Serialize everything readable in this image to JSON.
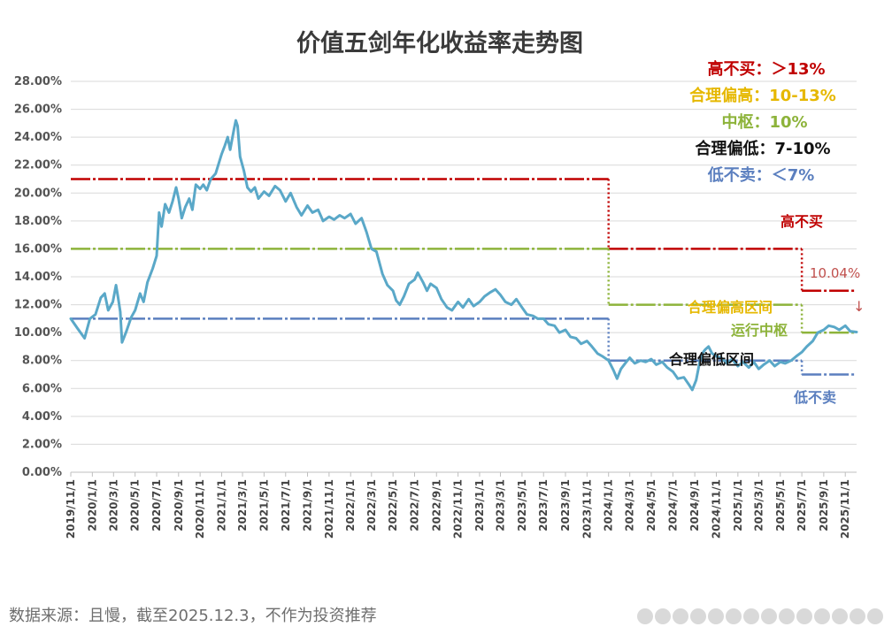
{
  "source_note": "数据来源：且慢，截至2025.12.3，不作为投资推荐",
  "colors": {
    "red": "#c00000",
    "gold": "#e6b800",
    "green": "#8db33a",
    "black": "#111111",
    "blue": "#5b7fbf",
    "line": "#5aa8c8",
    "grid": "#d9d9d9"
  },
  "legend": [
    {
      "text": "高不买：＞13%",
      "color": "#c00000"
    },
    {
      "text": "合理偏高：10-13%",
      "color": "#e6b800"
    },
    {
      "text": "中枢：10%",
      "color": "#8db33a"
    },
    {
      "text": "合理偏低：7-10%",
      "color": "#111111"
    },
    {
      "text": "低不卖：＜7%",
      "color": "#5b7fbf"
    }
  ],
  "annotations": {
    "high_no_buy": "高不买",
    "latest_value": "10.04%",
    "arrow": "↓",
    "reasonable_high_zone": "合理偏高区间",
    "running_center": "运行中枢",
    "reasonable_low_zone": "合理偏低区间",
    "low_no_sell": "低不卖"
  },
  "chart_data": {
    "type": "line",
    "title": "价值五剑年化收益率走势图",
    "xlabel": "",
    "ylabel": "",
    "ylim": [
      0,
      28
    ],
    "y_ticks": [
      "0.00%",
      "2.00%",
      "4.00%",
      "6.00%",
      "8.00%",
      "10.00%",
      "12.00%",
      "14.00%",
      "16.00%",
      "18.00%",
      "20.00%",
      "22.00%",
      "24.00%",
      "26.00%",
      "28.00%"
    ],
    "x_tick_labels": [
      "2019/11/1",
      "2020/1/1",
      "2020/3/1",
      "2020/5/1",
      "2020/7/1",
      "2020/9/1",
      "2020/11/1",
      "2021/1/1",
      "2021/3/1",
      "2021/5/1",
      "2021/7/1",
      "2021/9/1",
      "2021/11/1",
      "2022/1/1",
      "2022/3/1",
      "2022/5/1",
      "2022/7/1",
      "2022/9/1",
      "2022/11/1",
      "2023/1/1",
      "2023/3/1",
      "2023/5/1",
      "2023/7/1",
      "2023/9/1",
      "2023/11/1",
      "2024/1/1",
      "2024/3/1",
      "2024/5/1",
      "2024/7/1",
      "2024/9/1",
      "2024/11/1",
      "2025/1/1",
      "2025/3/1",
      "2025/5/1",
      "2025/7/1",
      "2025/9/1",
      "2025/11/1"
    ],
    "x_range": [
      "2019/11/1",
      "2025/12/3"
    ],
    "grid": true,
    "legend_position": "top-right",
    "series": [
      {
        "color": "#5aa8c8",
        "points": [
          [
            "2019/11/1",
            11.0
          ],
          [
            "2019/11/20",
            10.3
          ],
          [
            "2019/12/10",
            9.6
          ],
          [
            "2019/12/25",
            11.0
          ],
          [
            "2020/1/10",
            11.3
          ],
          [
            "2020/1/25",
            12.5
          ],
          [
            "2020/2/5",
            12.8
          ],
          [
            "2020/2/15",
            11.6
          ],
          [
            "2020/2/28",
            12.2
          ],
          [
            "2020/3/8",
            13.4
          ],
          [
            "2020/3/14",
            12.5
          ],
          [
            "2020/3/20",
            11.5
          ],
          [
            "2020/3/25",
            9.3
          ],
          [
            "2020/4/5",
            10.0
          ],
          [
            "2020/4/20",
            11.1
          ],
          [
            "2020/5/1",
            11.6
          ],
          [
            "2020/5/15",
            12.8
          ],
          [
            "2020/5/25",
            12.2
          ],
          [
            "2020/6/5",
            13.6
          ],
          [
            "2020/6/20",
            14.6
          ],
          [
            "2020/7/1",
            15.5
          ],
          [
            "2020/7/8",
            18.6
          ],
          [
            "2020/7/15",
            17.6
          ],
          [
            "2020/7/25",
            19.2
          ],
          [
            "2020/8/5",
            18.6
          ],
          [
            "2020/8/15",
            19.4
          ],
          [
            "2020/8/25",
            20.4
          ],
          [
            "2020/9/1",
            19.6
          ],
          [
            "2020/9/10",
            18.2
          ],
          [
            "2020/9/20",
            19.0
          ],
          [
            "2020/10/1",
            19.6
          ],
          [
            "2020/10/10",
            18.8
          ],
          [
            "2020/10/20",
            20.6
          ],
          [
            "2020/11/1",
            20.3
          ],
          [
            "2020/11/10",
            20.6
          ],
          [
            "2020/11/20",
            20.2
          ],
          [
            "2020/12/1",
            21.0
          ],
          [
            "2020/12/15",
            21.4
          ],
          [
            "2021/1/1",
            22.8
          ],
          [
            "2021/1/10",
            23.4
          ],
          [
            "2021/1/18",
            24.0
          ],
          [
            "2021/1/25",
            23.1
          ],
          [
            "2021/2/5",
            24.6
          ],
          [
            "2021/2/10",
            25.2
          ],
          [
            "2021/2/15",
            24.8
          ],
          [
            "2021/2/22",
            22.6
          ],
          [
            "2021/3/5",
            21.6
          ],
          [
            "2021/3/15",
            20.4
          ],
          [
            "2021/3/25",
            20.1
          ],
          [
            "2021/4/5",
            20.4
          ],
          [
            "2021/4/15",
            19.6
          ],
          [
            "2021/5/1",
            20.1
          ],
          [
            "2021/5/15",
            19.8
          ],
          [
            "2021/6/1",
            20.5
          ],
          [
            "2021/6/15",
            20.2
          ],
          [
            "2021/7/1",
            19.4
          ],
          [
            "2021/7/15",
            20.0
          ],
          [
            "2021/8/1",
            19.0
          ],
          [
            "2021/8/15",
            18.4
          ],
          [
            "2021/9/1",
            19.1
          ],
          [
            "2021/9/15",
            18.6
          ],
          [
            "2021/10/1",
            18.8
          ],
          [
            "2021/10/15",
            18.0
          ],
          [
            "2021/11/1",
            18.3
          ],
          [
            "2021/11/15",
            18.1
          ],
          [
            "2021/12/1",
            18.4
          ],
          [
            "2021/12/15",
            18.2
          ],
          [
            "2022/1/1",
            18.5
          ],
          [
            "2022/1/15",
            17.8
          ],
          [
            "2022/2/1",
            18.2
          ],
          [
            "2022/2/15",
            17.2
          ],
          [
            "2022/3/1",
            16.0
          ],
          [
            "2022/3/15",
            15.8
          ],
          [
            "2022/4/1",
            14.2
          ],
          [
            "2022/4/15",
            13.4
          ],
          [
            "2022/5/1",
            13.0
          ],
          [
            "2022/5/10",
            12.3
          ],
          [
            "2022/5/20",
            12.0
          ],
          [
            "2022/6/1",
            12.6
          ],
          [
            "2022/6/15",
            13.5
          ],
          [
            "2022/7/1",
            13.8
          ],
          [
            "2022/7/10",
            14.3
          ],
          [
            "2022/7/25",
            13.6
          ],
          [
            "2022/8/5",
            13.0
          ],
          [
            "2022/8/15",
            13.5
          ],
          [
            "2022/9/1",
            13.2
          ],
          [
            "2022/9/15",
            12.4
          ],
          [
            "2022/10/1",
            11.8
          ],
          [
            "2022/10/15",
            11.6
          ],
          [
            "2022/11/1",
            12.2
          ],
          [
            "2022/11/15",
            11.8
          ],
          [
            "2022/12/1",
            12.4
          ],
          [
            "2022/12/15",
            11.9
          ],
          [
            "2023/1/1",
            12.2
          ],
          [
            "2023/1/15",
            12.6
          ],
          [
            "2023/2/1",
            12.9
          ],
          [
            "2023/2/15",
            13.1
          ],
          [
            "2023/3/1",
            12.7
          ],
          [
            "2023/3/15",
            12.2
          ],
          [
            "2023/4/1",
            12.0
          ],
          [
            "2023/4/15",
            12.4
          ],
          [
            "2023/5/1",
            11.8
          ],
          [
            "2023/5/15",
            11.3
          ],
          [
            "2023/6/1",
            11.2
          ],
          [
            "2023/6/15",
            11.0
          ],
          [
            "2023/7/1",
            11.0
          ],
          [
            "2023/7/15",
            10.6
          ],
          [
            "2023/8/1",
            10.5
          ],
          [
            "2023/8/15",
            10.0
          ],
          [
            "2023/9/1",
            10.2
          ],
          [
            "2023/9/15",
            9.7
          ],
          [
            "2023/10/1",
            9.6
          ],
          [
            "2023/10/15",
            9.2
          ],
          [
            "2023/11/1",
            9.4
          ],
          [
            "2023/11/15",
            9.0
          ],
          [
            "2023/12/1",
            8.5
          ],
          [
            "2023/12/15",
            8.3
          ],
          [
            "2024/1/1",
            8.0
          ],
          [
            "2024/1/15",
            7.3
          ],
          [
            "2024/1/25",
            6.7
          ],
          [
            "2024/2/5",
            7.4
          ],
          [
            "2024/2/20",
            7.9
          ],
          [
            "2024/3/1",
            8.2
          ],
          [
            "2024/3/15",
            7.8
          ],
          [
            "2024/4/1",
            8.0
          ],
          [
            "2024/4/15",
            7.9
          ],
          [
            "2024/5/1",
            8.1
          ],
          [
            "2024/5/15",
            7.7
          ],
          [
            "2024/6/1",
            7.9
          ],
          [
            "2024/6/15",
            7.5
          ],
          [
            "2024/7/1",
            7.2
          ],
          [
            "2024/7/15",
            6.7
          ],
          [
            "2024/8/1",
            6.8
          ],
          [
            "2024/8/15",
            6.3
          ],
          [
            "2024/8/25",
            5.9
          ],
          [
            "2024/9/5",
            6.6
          ],
          [
            "2024/9/15",
            7.9
          ],
          [
            "2024/9/25",
            8.6
          ],
          [
            "2024/10/1",
            8.8
          ],
          [
            "2024/10/10",
            9.0
          ],
          [
            "2024/10/20",
            8.5
          ],
          [
            "2024/11/1",
            8.3
          ],
          [
            "2024/11/15",
            8.2
          ],
          [
            "2024/12/1",
            7.8
          ],
          [
            "2024/12/15",
            8.1
          ],
          [
            "2025/1/1",
            7.6
          ],
          [
            "2025/1/15",
            7.9
          ],
          [
            "2025/2/1",
            7.5
          ],
          [
            "2025/2/15",
            7.9
          ],
          [
            "2025/3/1",
            7.4
          ],
          [
            "2025/3/15",
            7.7
          ],
          [
            "2025/4/1",
            8.0
          ],
          [
            "2025/4/15",
            7.6
          ],
          [
            "2025/5/1",
            7.9
          ],
          [
            "2025/5/15",
            7.8
          ],
          [
            "2025/6/1",
            8.0
          ],
          [
            "2025/6/15",
            8.3
          ],
          [
            "2025/7/1",
            8.6
          ],
          [
            "2025/7/15",
            9.0
          ],
          [
            "2025/8/1",
            9.4
          ],
          [
            "2025/8/15",
            10.0
          ],
          [
            "2025/9/1",
            10.2
          ],
          [
            "2025/9/15",
            10.5
          ],
          [
            "2025/10/1",
            10.4
          ],
          [
            "2025/10/15",
            10.2
          ],
          [
            "2025/11/1",
            10.5
          ],
          [
            "2025/11/15",
            10.1
          ],
          [
            "2025/12/3",
            10.04
          ]
        ]
      }
    ],
    "reference_lines": [
      {
        "color": "#c00000",
        "segments": [
          [
            "2019/11/1",
            "2024/1/1",
            21
          ],
          [
            "2024/1/1",
            "2025/7/1",
            16
          ],
          [
            "2025/7/1",
            "2025/12/3",
            13
          ]
        ]
      },
      {
        "color": "#8db33a",
        "segments": [
          [
            "2019/11/1",
            "2024/1/1",
            16
          ],
          [
            "2024/1/1",
            "2025/7/1",
            12
          ],
          [
            "2025/7/1",
            "2025/12/3",
            10
          ]
        ]
      },
      {
        "color": "#5b7fbf",
        "segments": [
          [
            "2019/11/1",
            "2024/1/1",
            11
          ],
          [
            "2024/1/1",
            "2025/7/1",
            8
          ],
          [
            "2025/7/1",
            "2025/12/3",
            7
          ]
        ]
      }
    ]
  }
}
